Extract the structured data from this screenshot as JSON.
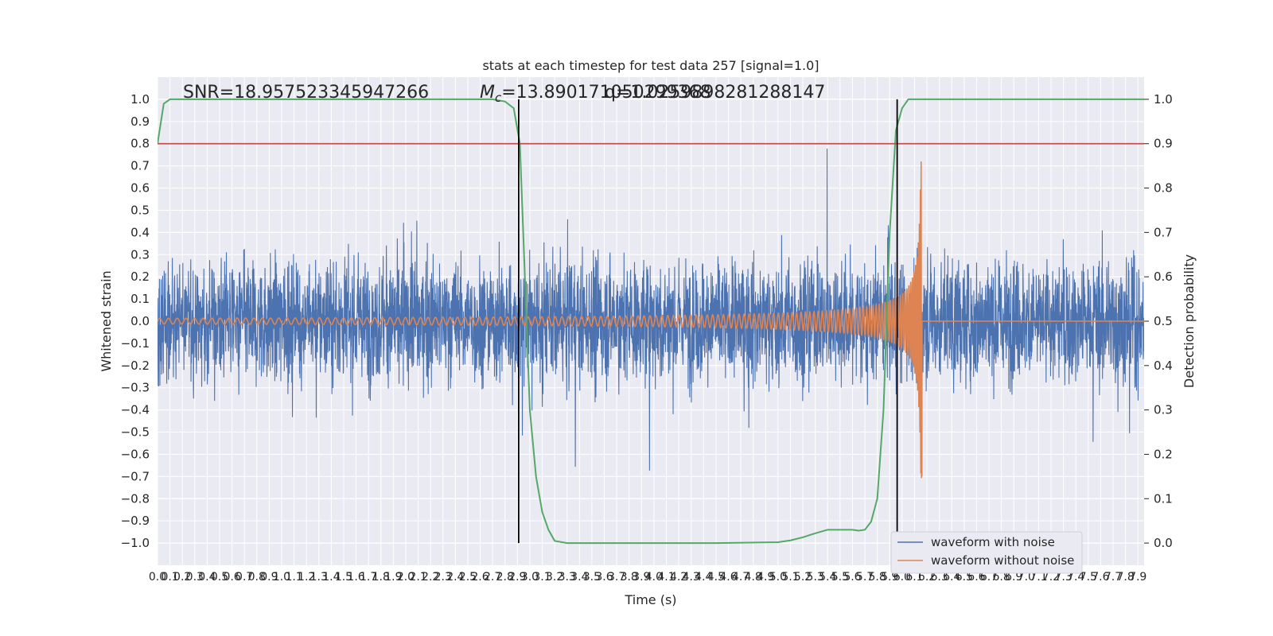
{
  "chart_data": {
    "type": "line",
    "title": "stats at each timestep for test data 257 [signal=1.0]",
    "xlabel": "Time (s)",
    "ylabel": "Whitened strain",
    "ylabel_right": "Detection probability",
    "xlim": [
      0.0,
      7.95
    ],
    "ylim": [
      -1.1,
      1.1
    ],
    "ylim_right": [
      -0.05,
      1.05
    ],
    "grid": true,
    "legend_location": "lower right",
    "x_tick_labels": [
      "0.0",
      "0.1",
      "0.2",
      "0.3",
      "0.4",
      "0.5",
      "0.6",
      "0.7",
      "0.8",
      "0.9",
      "1.0",
      "1.1",
      "1.2",
      "1.3",
      "1.4",
      "1.5",
      "1.6",
      "1.7",
      "1.8",
      "1.9",
      "2.0",
      "2.1",
      "2.2",
      "2.3",
      "2.4",
      "2.5",
      "2.6",
      "2.7",
      "2.8",
      "2.9",
      "3.0",
      "3.1",
      "3.2",
      "3.3",
      "3.4",
      "3.5",
      "3.6",
      "3.7",
      "3.8",
      "3.9",
      "4.0",
      "4.1",
      "4.2",
      "4.3",
      "4.4",
      "4.5",
      "4.6",
      "4.7",
      "4.8",
      "4.9",
      "5.0",
      "5.1",
      "5.2",
      "5.3",
      "5.4",
      "5.5",
      "5.6",
      "5.7",
      "5.8",
      "5.9",
      "6.0",
      "6.1",
      "6.2",
      "6.3",
      "6.4",
      "6.5",
      "6.6",
      "6.7",
      "6.8",
      "6.9",
      "7.0",
      "7.1",
      "7.2",
      "7.3",
      "7.4",
      "7.5",
      "7.6",
      "7.7",
      "7.8",
      "7.9"
    ],
    "y_tick_labels": [
      "1.0",
      "0.9",
      "0.8",
      "0.7",
      "0.6",
      "0.5",
      "0.4",
      "0.3",
      "0.2",
      "0.1",
      "0.0",
      "−0.1",
      "−0.2",
      "−0.3",
      "−0.4",
      "−0.5",
      "−0.6",
      "−0.7",
      "−0.8",
      "−0.9",
      "−1.0"
    ],
    "y_right_tick_labels": [
      "1.0",
      "0.9",
      "0.8",
      "0.7",
      "0.6",
      "0.5",
      "0.4",
      "0.3",
      "0.2",
      "0.1",
      "0.0"
    ],
    "annotations": {
      "snr": "SNR=18.957523345947266",
      "mc": "M",
      "mc_sub": "c",
      "mc_value": "=13.890171050299368",
      "q": "q=1.0259898281288147"
    },
    "threshold": 0.9,
    "vertical_markers": [
      2.91,
      5.96
    ],
    "merger_time": 6.16,
    "series": [
      {
        "name": "waveform with noise",
        "color": "#4c72b0",
        "axis": "left",
        "kind": "noise",
        "spike_max": 0.91,
        "spike_min": -0.96
      },
      {
        "name": "waveform without noise",
        "color": "#dd8452",
        "axis": "left",
        "kind": "chirp",
        "peak_max": 0.72,
        "peak_min": -0.78
      },
      {
        "name": "",
        "color": "#55a868",
        "axis": "right",
        "kind": "probability",
        "x": [
          0.0,
          0.05,
          0.1,
          0.2,
          0.5,
          1.0,
          2.0,
          2.5,
          2.7,
          2.8,
          2.87,
          2.92,
          2.96,
          3.0,
          3.05,
          3.1,
          3.15,
          3.2,
          3.3,
          3.5,
          4.0,
          4.5,
          5.0,
          5.1,
          5.2,
          5.3,
          5.4,
          5.5,
          5.6,
          5.65,
          5.7,
          5.75,
          5.8,
          5.85,
          5.9,
          5.95,
          6.0,
          6.05,
          6.1,
          6.15,
          6.3,
          7.0,
          7.95
        ],
        "y": [
          0.9,
          0.99,
          1.0,
          1.0,
          1.0,
          1.0,
          1.0,
          1.0,
          1.0,
          0.995,
          0.98,
          0.9,
          0.6,
          0.3,
          0.15,
          0.07,
          0.03,
          0.005,
          0.0,
          0.0,
          0.0,
          0.0,
          0.002,
          0.006,
          0.013,
          0.022,
          0.03,
          0.03,
          0.03,
          0.028,
          0.03,
          0.048,
          0.1,
          0.3,
          0.7,
          0.93,
          0.98,
          1.0,
          1.0,
          1.0,
          1.0,
          1.0,
          1.0
        ]
      }
    ],
    "threshold_color": "#c44e52",
    "marker_color": "#000000"
  }
}
